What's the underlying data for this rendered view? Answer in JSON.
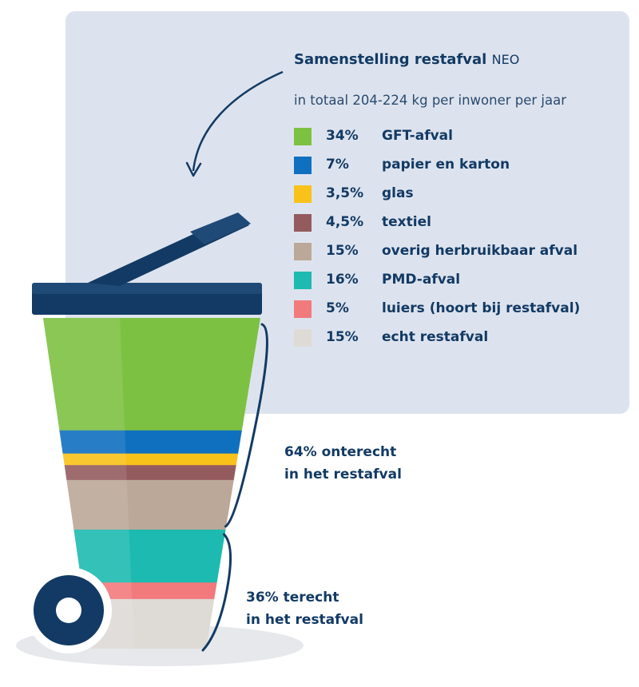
{
  "chart_data": {
    "type": "bar",
    "title": "Samenstelling restafval",
    "title_suffix": "NEO",
    "subtitle": "in totaal 204-224 kg per inwoner per jaar",
    "series": [
      {
        "label": "GFT-afval",
        "pct_label": "34%",
        "value": 34,
        "color": "#7dc142"
      },
      {
        "label": "papier en karton",
        "pct_label": "7%",
        "value": 7,
        "color": "#1070c0"
      },
      {
        "label": "glas",
        "pct_label": "3,5%",
        "value": 3.5,
        "color": "#f9c21a"
      },
      {
        "label": "textiel",
        "pct_label": "4,5%",
        "value": 4.5,
        "color": "#945b5f"
      },
      {
        "label": "overig herbruikbaar afval",
        "pct_label": "15%",
        "value": 15,
        "color": "#bca898"
      },
      {
        "label": "PMD-afval",
        "pct_label": "16%",
        "value": 16,
        "color": "#1cbab0"
      },
      {
        "label": "luiers (hoort bij restafval)",
        "pct_label": "5%",
        "value": 5,
        "color": "#f27a7c"
      },
      {
        "label": "echt restafval",
        "pct_label": "15%",
        "value": 15,
        "color": "#dedad6"
      }
    ],
    "annotations": [
      {
        "line1": "64% onterecht",
        "line2": "in het restafval",
        "value": 64
      },
      {
        "line1": "36% terecht",
        "line2": "in het restafval",
        "value": 36
      }
    ]
  }
}
